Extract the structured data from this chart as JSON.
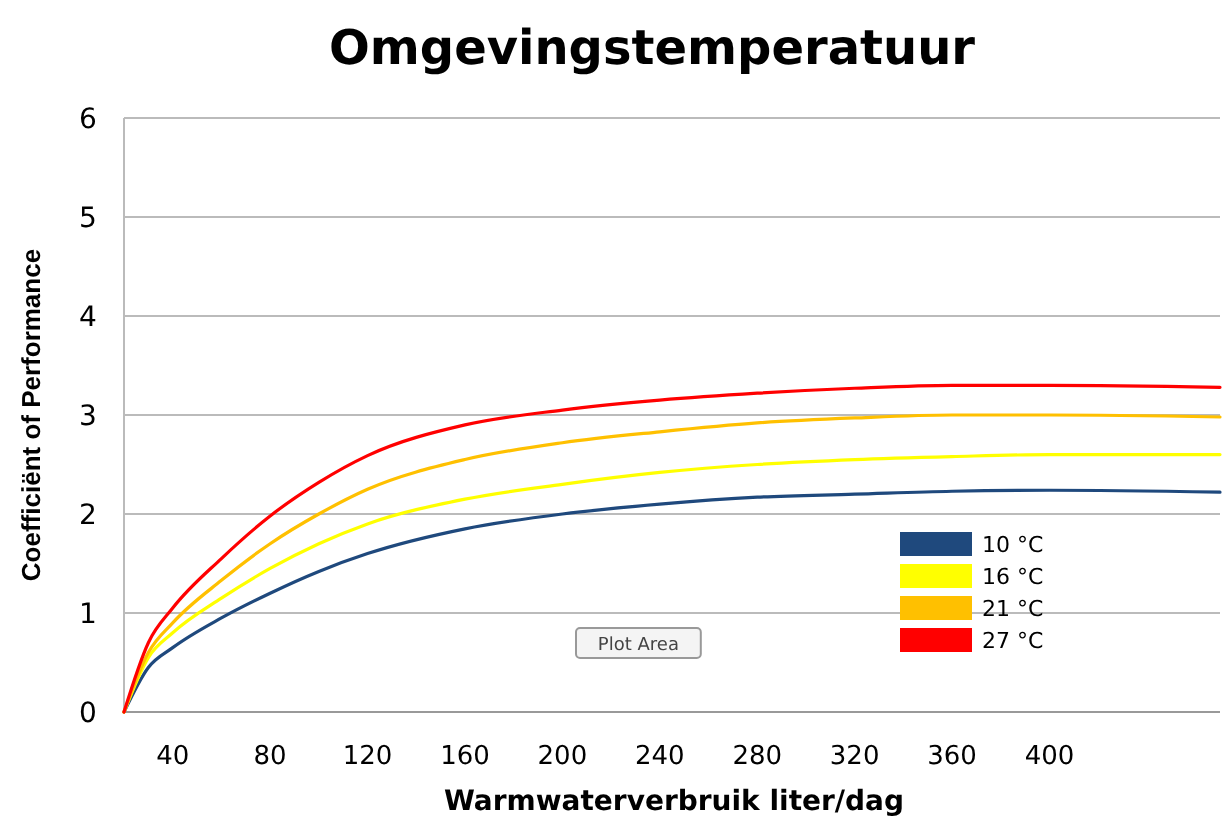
{
  "chart_data": {
    "type": "line",
    "title": "Omgevingstemperatuur",
    "xlabel": "Warmwaterverbruik liter/dag",
    "ylabel": "Coefficiënt of Performance",
    "x": [
      20,
      30,
      40,
      60,
      80,
      100,
      120,
      160,
      200,
      240,
      280,
      320,
      360,
      400,
      470
    ],
    "series": [
      {
        "name": "10 °C",
        "color": "#1f497d",
        "values": [
          0,
          0.45,
          0.65,
          0.95,
          1.2,
          1.42,
          1.6,
          1.85,
          2.0,
          2.1,
          2.17,
          2.2,
          2.23,
          2.24,
          2.22
        ]
      },
      {
        "name": "16 °C",
        "color": "#ffff00",
        "values": [
          0,
          0.55,
          0.8,
          1.15,
          1.45,
          1.7,
          1.9,
          2.15,
          2.3,
          2.42,
          2.5,
          2.55,
          2.58,
          2.6,
          2.6
        ]
      },
      {
        "name": "21 °C",
        "color": "#ffc000",
        "values": [
          0,
          0.6,
          0.9,
          1.33,
          1.7,
          2.0,
          2.25,
          2.55,
          2.72,
          2.83,
          2.92,
          2.97,
          3.0,
          3.0,
          2.98
        ]
      },
      {
        "name": "27 °C",
        "color": "#ff0000",
        "values": [
          0,
          0.7,
          1.05,
          1.55,
          1.98,
          2.32,
          2.59,
          2.9,
          3.05,
          3.15,
          3.22,
          3.27,
          3.3,
          3.3,
          3.28
        ]
      }
    ],
    "xlim": [
      20,
      470
    ],
    "xticks": [
      40,
      80,
      120,
      160,
      200,
      240,
      280,
      320,
      360,
      400
    ],
    "ylim": [
      0,
      6
    ],
    "yticks": [
      0,
      1,
      2,
      3,
      4,
      5,
      6
    ],
    "grid": "y",
    "legend": "bottom right",
    "marker": "none",
    "line_style": "solid",
    "annotations": [
      "Plot Area"
    ]
  }
}
